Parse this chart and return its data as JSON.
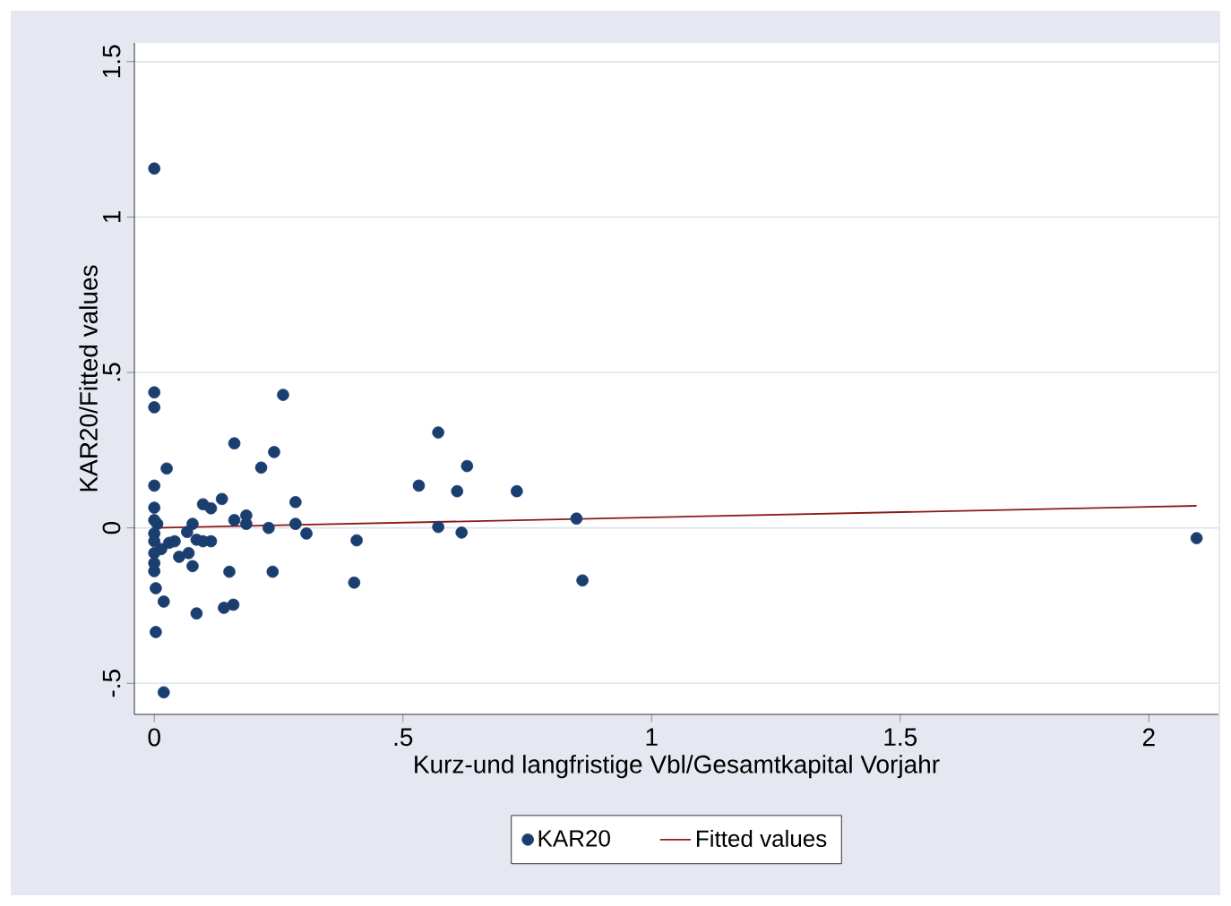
{
  "chart_data": {
    "type": "scatter",
    "xlabel": "Kurz-und langfristige Vbl/Gesamtkapital Vorjahr",
    "ylabel": "KAR20/Fitted values",
    "xlim": [
      -0.04,
      2.14
    ],
    "ylim": [
      -0.6,
      1.56
    ],
    "xticks": [
      0,
      {
        "value": 0.5,
        "label": ".5"
      },
      1,
      {
        "value": 1.5,
        "label": "1.5"
      },
      2
    ],
    "yticks": [
      {
        "value": -0.5,
        "label": "-.5"
      },
      0,
      {
        "value": 0.5,
        "label": ".5"
      },
      1,
      {
        "value": 1.5,
        "label": "1.5"
      }
    ],
    "grid": "y",
    "legend": "bottom",
    "series": [
      {
        "name": "KAR20",
        "marker": "circle",
        "color": "#1a3e6f",
        "x": [
          0,
          0,
          0,
          0.259,
          0.161,
          0.241,
          0.215,
          0.025,
          0,
          0.571,
          0.629,
          0.532,
          0.609,
          0.729,
          0.284,
          0.136,
          0.098,
          0.114,
          0,
          0.185,
          0.161,
          0,
          0.006,
          0.185,
          0.23,
          0.284,
          0.306,
          0.077,
          0.066,
          0.571,
          0.618,
          0.849,
          0.407,
          0.402,
          0.861,
          2.096,
          0,
          0,
          0,
          0,
          0,
          0.003,
          0.019,
          0.003,
          0.019,
          0.085,
          0.14,
          0.159,
          0.151,
          0.238,
          0.077,
          0.05,
          0.069,
          0.03,
          0.114,
          0.098,
          0.085,
          0.041,
          0.014
        ],
        "values": [
          1.156,
          0.436,
          0.388,
          0.428,
          0.272,
          0.244,
          0.194,
          0.191,
          0.136,
          0.307,
          0.199,
          0.136,
          0.118,
          0.118,
          0.083,
          0.093,
          0.076,
          0.063,
          0.065,
          0.04,
          0.025,
          0.025,
          0.013,
          0.013,
          0,
          0.013,
          -0.018,
          0.013,
          -0.013,
          0.003,
          -0.015,
          0.03,
          -0.04,
          -0.176,
          -0.169,
          -0.033,
          -0.018,
          -0.043,
          -0.081,
          -0.113,
          -0.139,
          -0.194,
          -0.237,
          -0.335,
          -0.529,
          -0.275,
          -0.257,
          -0.247,
          -0.141,
          -0.141,
          -0.123,
          -0.093,
          -0.081,
          -0.048,
          -0.043,
          -0.043,
          -0.038,
          -0.043,
          -0.068
        ]
      },
      {
        "name": "Fitted values",
        "type": "line",
        "marker": "none",
        "line_style": "solid",
        "color": "#8b1a1a",
        "x": [
          0,
          2.096
        ],
        "values": [
          0,
          0.071
        ]
      }
    ]
  }
}
